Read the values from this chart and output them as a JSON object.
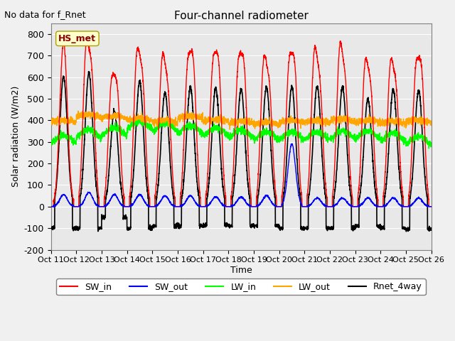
{
  "title": "Four-channel radiometer",
  "subtitle": "No data for f_Rnet",
  "ylabel": "Solar radiation (W/m2)",
  "xlabel": "Time",
  "ylim": [
    -200,
    850
  ],
  "yticks": [
    -200,
    -100,
    0,
    100,
    200,
    300,
    400,
    500,
    600,
    700,
    800
  ],
  "xtick_labels": [
    "Oct 11",
    "Oct 12",
    "Oct 13",
    "Oct 14",
    "Oct 15",
    "Oct 16",
    "Oct 17",
    "Oct 18",
    "Oct 19",
    "Oct 20",
    "Oct 21",
    "Oct 22",
    "Oct 23",
    "Oct 24",
    "Oct 25",
    "Oct 26"
  ],
  "station_label": "HS_met",
  "legend_entries": [
    "SW_in",
    "SW_out",
    "LW_in",
    "LW_out",
    "Rnet_4way"
  ],
  "legend_colors": [
    "#ff0000",
    "#0000ff",
    "#00ff00",
    "#ffa500",
    "#000000"
  ],
  "bg_color": "#e8e8e8",
  "n_days": 15,
  "peak_sw_in": [
    760,
    775,
    615,
    735,
    710,
    695,
    715,
    710,
    700,
    710,
    740,
    760,
    685,
    685,
    690
  ],
  "peak_sw_in2": [
    0,
    620,
    580,
    600,
    535,
    720,
    715,
    705,
    560,
    700,
    550,
    560,
    545,
    545,
    690
  ],
  "peak_sw_out": [
    55,
    65,
    55,
    55,
    50,
    50,
    45,
    45,
    50,
    290,
    40,
    40,
    40,
    40,
    40
  ],
  "lw_in_base": [
    295,
    320,
    330,
    360,
    350,
    340,
    330,
    320,
    310,
    310,
    310,
    315,
    315,
    305,
    290
  ],
  "lw_out_base": [
    390,
    415,
    410,
    400,
    390,
    410,
    395,
    385,
    380,
    390,
    390,
    395,
    390,
    385,
    390
  ],
  "peak_rnet": [
    600,
    620,
    440,
    580,
    530,
    555,
    550,
    545,
    555,
    555,
    560,
    555,
    500,
    545,
    540
  ],
  "night_rnet": [
    -100,
    -100,
    -50,
    -100,
    -90,
    -90,
    -85,
    -90,
    -90,
    -100,
    -100,
    -100,
    -90,
    -100,
    -105
  ]
}
